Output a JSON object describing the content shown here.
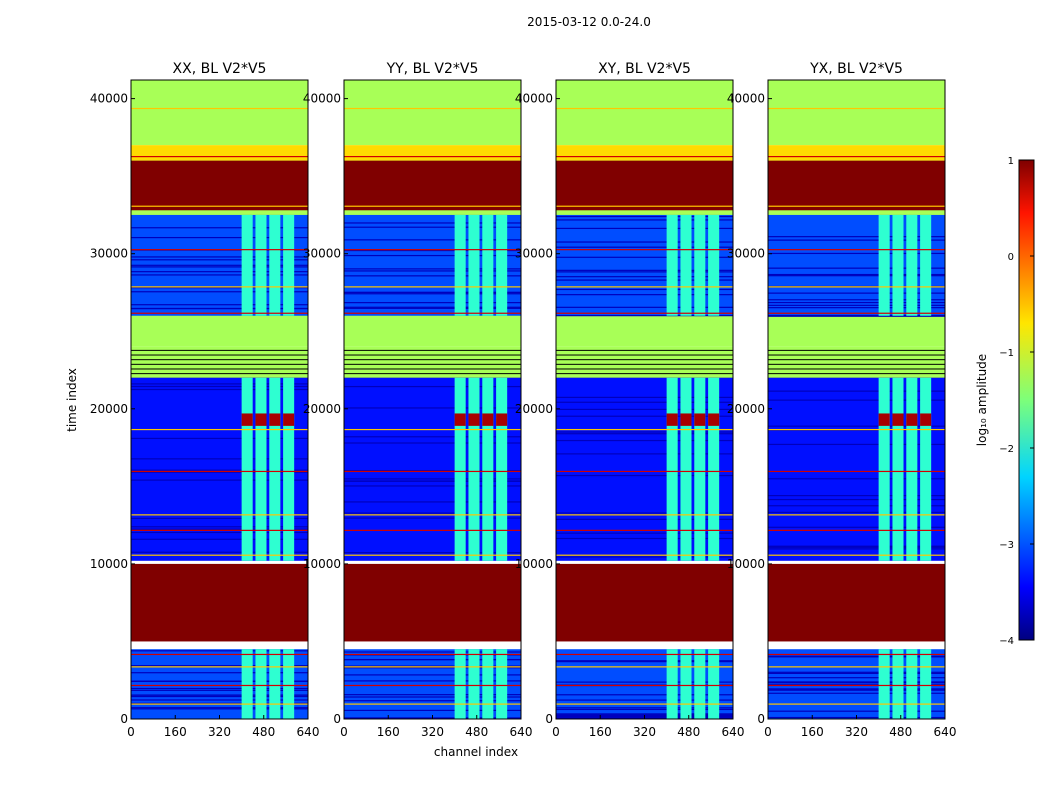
{
  "suptitle": "2015-03-12 0.0-24.0",
  "xlabel": "channel index",
  "ylabel": "time index",
  "colorbar": {
    "label": "log₁₀ amplitude",
    "ticks": [
      1,
      0,
      -1,
      -2,
      -3,
      -4
    ],
    "tick_labels": [
      "1",
      "0",
      "−1",
      "−2",
      "−3",
      "−4"
    ],
    "range": [
      -4,
      1
    ]
  },
  "colors": {
    "jet_min": "#00007f",
    "jet_max": "#7f0000",
    "flag_green": "#9cff5a"
  },
  "chart_data": {
    "type": "heatmap",
    "colormap": "jet",
    "x": {
      "range": [
        0,
        640
      ],
      "ticks": [
        0,
        160,
        320,
        480,
        640
      ],
      "tick_labels": [
        "0",
        "160",
        "320",
        "480",
        "640"
      ]
    },
    "y": {
      "range": [
        0,
        41200
      ],
      "ticks": [
        0,
        10000,
        20000,
        30000,
        40000
      ],
      "tick_labels": [
        "0",
        "10000",
        "20000",
        "30000",
        "40000"
      ]
    },
    "panels": [
      {
        "title": "XX, BL V2*V5",
        "pol": "XX"
      },
      {
        "title": "YY, BL V2*V5",
        "pol": "YY"
      },
      {
        "title": "XY, BL V2*V5",
        "pol": "XY"
      },
      {
        "title": "YX, BL V2*V5",
        "pol": "YX"
      }
    ],
    "bands": [
      {
        "y0": 37000,
        "y1": 41200,
        "kind": "flag-green",
        "value": -1.3
      },
      {
        "y0": 36000,
        "y1": 37000,
        "kind": "yellow",
        "value": -0.7
      },
      {
        "y0": 24000,
        "y1": 36000,
        "kind": "flag-green",
        "value": -1.3
      },
      {
        "y0": 22000,
        "y1": 24000,
        "kind": "stripes",
        "value": -1.3
      },
      {
        "y0": 26000,
        "y1": 32500,
        "kind": "data",
        "value": -3.0
      },
      {
        "y0": 10200,
        "y1": 22000,
        "kind": "data",
        "value": -3.3
      },
      {
        "y0": 32800,
        "y1": 36000,
        "kind": "flagged-max",
        "value": 1.0
      },
      {
        "y0": 5000,
        "y1": 10000,
        "kind": "flagged-max",
        "value": 1.0
      },
      {
        "y0": 0,
        "y1": 4500,
        "kind": "data",
        "value": -3.0
      }
    ],
    "active_channels": [
      [
        400,
        440
      ],
      [
        450,
        490
      ],
      [
        500,
        540
      ],
      [
        550,
        590
      ]
    ],
    "rfi_hotspot": {
      "y": 19300,
      "value": 0.8
    }
  }
}
